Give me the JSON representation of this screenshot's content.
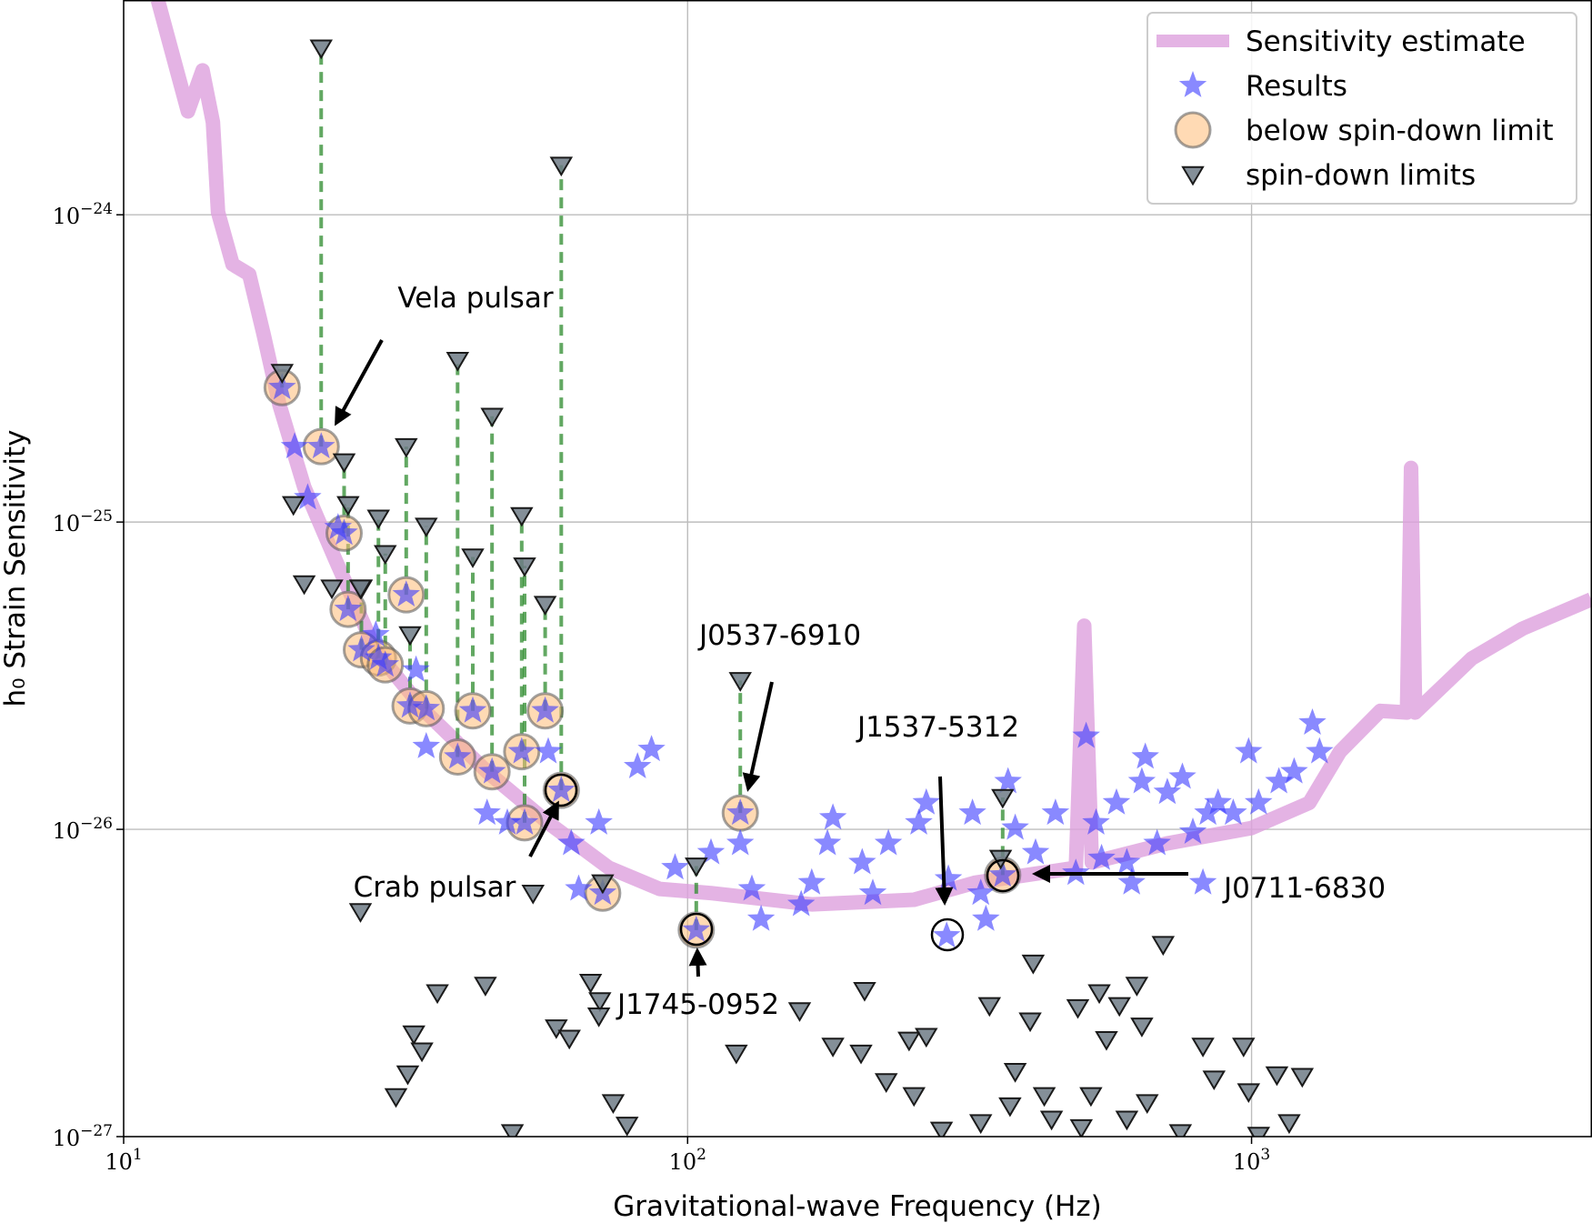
{
  "chart_data": {
    "type": "scatter",
    "x_label": "Gravitational-wave Frequency (Hz)",
    "y_label": "h₀ Strain Sensitivity",
    "xscale": "log",
    "yscale": "log",
    "xlim": [
      10,
      4000
    ],
    "ylim": [
      1e-27,
      5e-24
    ],
    "xticks": [
      {
        "value": 10,
        "label": "10",
        "sup": "1"
      },
      {
        "value": 100,
        "label": "10",
        "sup": "2"
      },
      {
        "value": 1000,
        "label": "10",
        "sup": "3"
      }
    ],
    "yticks": [
      {
        "value": 1e-27,
        "label": "10",
        "sup": "−27"
      },
      {
        "value": 1e-26,
        "label": "10",
        "sup": "−26"
      },
      {
        "value": 1e-25,
        "label": "10",
        "sup": "−25"
      },
      {
        "value": 1e-24,
        "label": "10",
        "sup": "−24"
      }
    ],
    "grid": true,
    "legend": "upper right",
    "series": [
      {
        "name": "Sensitivity estimate",
        "marker": "line",
        "color": "#dda0dd",
        "x": [
          11.5,
          13.0,
          13.8,
          14.4,
          14.7,
          15.6,
          16.7,
          17.7,
          18.9,
          20.9,
          23.7,
          28.0,
          34.4,
          44.1,
          56.6,
          72.5,
          89.2,
          110,
          166,
          252,
          323,
          488,
          505,
          521,
          709,
          1000,
          1266,
          1435,
          1692,
          1886,
          1918,
          1950,
          2458,
          3025,
          4000
        ],
        "values": [
          5e-24,
          2.17e-24,
          2.95e-24,
          2e-24,
          1.02e-24,
          6.9e-25,
          6.4e-25,
          4.1e-25,
          2.4e-25,
          1.3e-25,
          7.6e-26,
          3.8e-26,
          2.4e-26,
          1.54e-26,
          1.05e-26,
          7.5e-27,
          6.4e-27,
          6.2e-27,
          5.7e-27,
          5.9e-27,
          6.7e-27,
          7.5e-27,
          4.6e-26,
          7.8e-27,
          9e-27,
          1.01e-26,
          1.22e-26,
          1.79e-26,
          2.43e-26,
          2.4e-26,
          1.5e-25,
          2.4e-26,
          3.6e-26,
          4.5e-26,
          5.6e-26
        ]
      },
      {
        "name": "Results",
        "marker": "star",
        "color": "#3a3aff",
        "x": [
          19.1,
          22.4,
          24.6,
          25.0,
          26.4,
          28.3,
          29.1,
          31.7,
          32.2,
          34.4,
          39.1,
          41.6,
          45.0,
          50.8,
          51.4,
          55.9,
          59.7,
          70.7,
          103.6,
          124,
          362,
          20.1,
          21.2,
          24.0,
          28.0,
          33.0,
          34.4,
          44.1,
          47.9,
          56.6,
          62.2,
          69.6,
          64.1,
          81.5,
          86.3,
          95.0,
          110,
          124,
          130,
          135,
          159,
          166,
          177,
          181,
          204,
          213,
          227,
          257,
          265,
          290,
          320,
          331,
          338,
          288,
          370,
          381,
          414,
          449,
          488,
          509,
          530,
          576,
          601,
          639,
          648,
          680,
          709,
          754,
          787,
          837,
          872,
          928,
          988,
          1029,
          1118,
          1190,
          1282,
          1320,
          542,
          613,
          820
        ],
        "values": [
          2.74e-25,
          1.76e-25,
          9.2e-26,
          5.2e-26,
          3.84e-26,
          3.61e-26,
          3.43e-26,
          5.8e-26,
          2.52e-26,
          2.47e-26,
          1.72e-26,
          2.43e-26,
          1.54e-26,
          1.79e-26,
          1.05e-26,
          2.43e-26,
          1.34e-26,
          6.2e-27,
          4.7e-27,
          1.13e-26,
          7.1e-27,
          1.76e-25,
          1.2e-25,
          9.6e-26,
          4.3e-26,
          3.3e-26,
          1.86e-26,
          1.13e-26,
          1.05e-26,
          1.79e-26,
          9e-27,
          1.05e-26,
          6.4e-27,
          1.6e-26,
          1.82e-26,
          7.5e-27,
          8.4e-27,
          9e-27,
          6.4e-27,
          5.1e-27,
          5.7e-27,
          6.7e-27,
          9e-27,
          1.09e-26,
          7.8e-27,
          6.2e-27,
          9e-27,
          1.05e-26,
          1.22e-26,
          6.9e-27,
          1.13e-26,
          6.2e-27,
          5.1e-27,
          4.5e-27,
          1.43e-26,
          1.01e-26,
          8.4e-27,
          1.13e-26,
          7.2e-27,
          2.01e-26,
          1.05e-26,
          1.22e-26,
          7.8e-27,
          1.43e-26,
          1.72e-26,
          9e-27,
          1.32e-26,
          1.48e-26,
          9.8e-27,
          1.13e-26,
          1.22e-26,
          1.13e-26,
          1.79e-26,
          1.22e-26,
          1.43e-26,
          1.54e-26,
          2.22e-26,
          1.79e-26,
          8.05e-27,
          6.7e-27,
          6.7e-27
        ]
      },
      {
        "name": "below spin-down limit",
        "marker": "circle",
        "color": "#ffbb77",
        "x": [
          19.1,
          22.4,
          24.6,
          25.0,
          26.4,
          28.3,
          29.1,
          31.7,
          32.2,
          34.4,
          39.1,
          41.6,
          45.0,
          50.8,
          51.4,
          55.9,
          59.7,
          70.7,
          103.6,
          124,
          362
        ],
        "values": [
          2.74e-25,
          1.76e-25,
          9.2e-26,
          5.2e-26,
          3.84e-26,
          3.61e-26,
          3.43e-26,
          5.8e-26,
          2.52e-26,
          2.47e-26,
          1.72e-26,
          2.43e-26,
          1.54e-26,
          1.79e-26,
          1.05e-26,
          2.43e-26,
          1.34e-26,
          6.2e-27,
          4.7e-27,
          1.13e-26,
          7.1e-27
        ]
      },
      {
        "name": "spin-down limits",
        "marker": "triangle",
        "color": "#6e7b86",
        "x": [
          19.1,
          22.4,
          24.6,
          25.0,
          26.4,
          28.3,
          29.1,
          31.7,
          32.2,
          34.4,
          39.1,
          41.6,
          45.0,
          50.8,
          51.4,
          55.9,
          59.7,
          70.7,
          103.6,
          124,
          362,
          20.0,
          20.9,
          23.4,
          26.3,
          53.2,
          26.3,
          36.0,
          43.8,
          32.7,
          33.8,
          31.9,
          30.4,
          48.9,
          58.5,
          61.7,
          67.3,
          69.9,
          69.6,
          73.8,
          78.1,
          122,
          158,
          181,
          206,
          203,
          225,
          247,
          252,
          265,
          282,
          331,
          343,
          373,
          410,
          405,
          381,
          429,
          442,
          492,
          499,
          519,
          537,
          553,
          583,
          626,
          639,
          697,
          653,
          601,
          820,
          858,
          968,
          1029,
          1109,
          1166,
          1230,
          748,
          988,
          359
        ],
        "values": [
          3.07e-25,
          3.49e-24,
          1.57e-25,
          1.14e-25,
          6.1e-26,
          1.03e-25,
          7.9e-26,
          1.76e-25,
          4.3e-26,
          9.7e-26,
          3.36e-25,
          7.7e-26,
          2.21e-25,
          1.05e-25,
          7.2e-26,
          5.4e-26,
          1.45e-24,
          6.7e-27,
          7.6e-27,
          3.05e-26,
          1.27e-26,
          1.14e-25,
          6.3e-26,
          6.1e-26,
          6.1e-26,
          6.2e-27,
          5.4e-27,
          2.94e-27,
          3.11e-27,
          2.16e-27,
          1.9e-27,
          1.6e-27,
          1.35e-27,
          1.03e-27,
          2.26e-27,
          2.09e-27,
          3.18e-27,
          2.77e-27,
          2.47e-27,
          1.29e-27,
          1.09e-27,
          1.87e-27,
          2.57e-27,
          1.97e-27,
          2.99e-27,
          1.87e-27,
          1.51e-27,
          2.06e-27,
          1.36e-27,
          2.12e-27,
          1.05e-27,
          1.11e-27,
          2.67e-27,
          1.26e-27,
          3.67e-27,
          2.38e-27,
          1.63e-27,
          1.36e-27,
          1.14e-27,
          2.63e-27,
          1.07e-27,
          1.36e-27,
          2.94e-27,
          2.07e-27,
          2.67e-27,
          3.11e-27,
          2.29e-27,
          4.22e-27,
          1.29e-27,
          1.14e-27,
          1.97e-27,
          1.54e-27,
          1.97e-27,
          1.01e-27,
          1.59e-27,
          1.11e-27,
          1.57e-27,
          1.03e-27,
          1.4e-27,
          8.05e-27
        ]
      }
    ],
    "annotations": [
      "Vela pulsar",
      "J0537-6910",
      "J1537-5312",
      "Crab pulsar",
      "J1745-0952",
      "J0711-6830"
    ]
  }
}
